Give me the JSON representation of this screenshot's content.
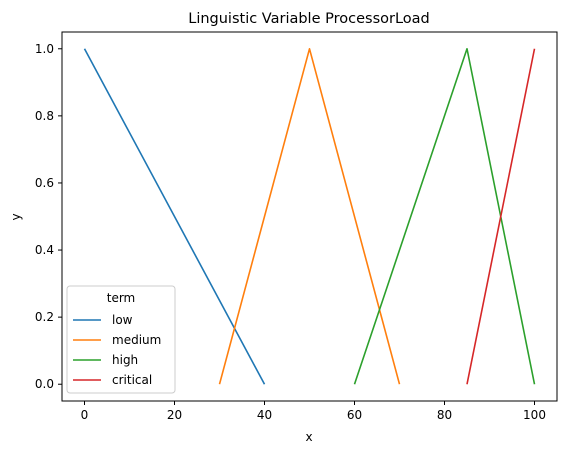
{
  "chart_data": {
    "type": "line",
    "title": "Linguistic Variable ProcessorLoad",
    "xlabel": "x",
    "ylabel": "y",
    "xlim": [
      -5,
      105
    ],
    "ylim": [
      -0.05,
      1.05
    ],
    "xticks": [
      0,
      20,
      40,
      60,
      80,
      100
    ],
    "yticks": [
      0.0,
      0.2,
      0.4,
      0.6,
      0.8,
      1.0
    ],
    "xtick_labels": [
      "0",
      "20",
      "40",
      "60",
      "80",
      "100"
    ],
    "ytick_labels": [
      "0.0",
      "0.2",
      "0.4",
      "0.6",
      "0.8",
      "1.0"
    ],
    "grid": false,
    "legend": {
      "title": "term",
      "placement": "lower-left"
    },
    "series": [
      {
        "name": "low",
        "color": "#1f77b4",
        "x": [
          0,
          40
        ],
        "y": [
          1.0,
          0.0
        ]
      },
      {
        "name": "medium",
        "color": "#ff7f0e",
        "x": [
          30,
          50,
          70
        ],
        "y": [
          0.0,
          1.0,
          0.0
        ]
      },
      {
        "name": "high",
        "color": "#2ca02c",
        "x": [
          60,
          85,
          100
        ],
        "y": [
          0.0,
          1.0,
          0.0
        ]
      },
      {
        "name": "critical",
        "color": "#d62728",
        "x": [
          85,
          100
        ],
        "y": [
          0.0,
          1.0
        ]
      }
    ]
  }
}
